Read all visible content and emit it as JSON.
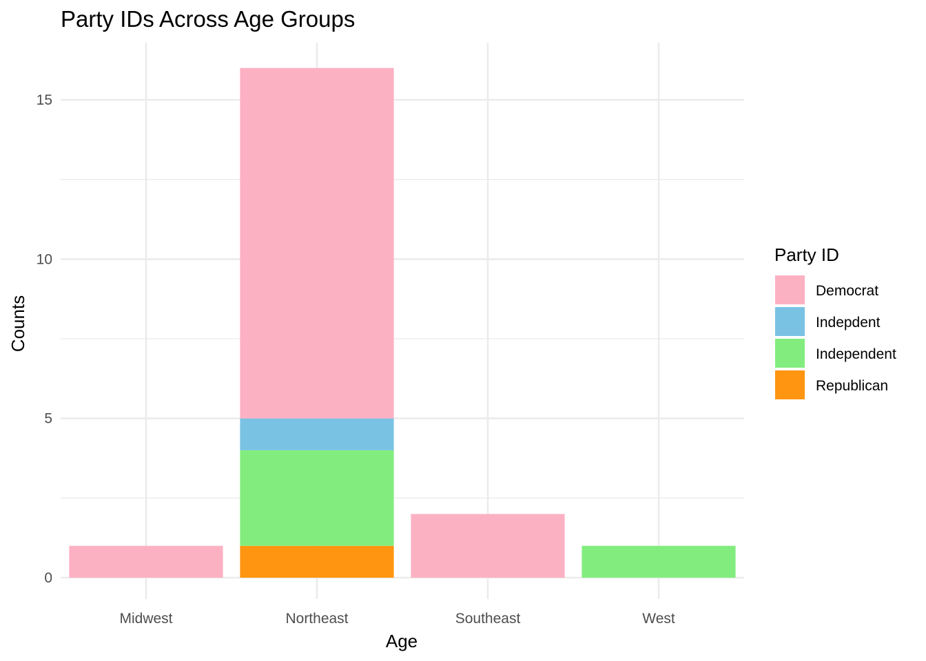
{
  "chart_data": {
    "type": "bar",
    "stacked": true,
    "title": "Party IDs Across Age Groups",
    "xlabel": "Age",
    "ylabel": "Counts",
    "categories": [
      "Midwest",
      "Northeast",
      "Southeast",
      "West"
    ],
    "series": [
      {
        "name": "Republican",
        "color": "#FF9510",
        "values": [
          0,
          1,
          0,
          0
        ]
      },
      {
        "name": "Independent",
        "color": "#82ED7E",
        "values": [
          0,
          3,
          0,
          1
        ]
      },
      {
        "name": "Indepdent",
        "color": "#7AC2E4",
        "values": [
          0,
          1,
          0,
          0
        ]
      },
      {
        "name": "Democrat",
        "color": "#FCB1C3",
        "values": [
          1,
          11,
          2,
          0
        ]
      }
    ],
    "ylim": [
      0,
      16
    ],
    "yticks": [
      0,
      5,
      10,
      15
    ],
    "yticks_minor": [
      2.5,
      7.5,
      12.5
    ],
    "grid": true,
    "legend": {
      "title": "Party ID",
      "position": "right",
      "entries": [
        "Democrat",
        "Indepdent",
        "Independent",
        "Republican"
      ]
    }
  }
}
